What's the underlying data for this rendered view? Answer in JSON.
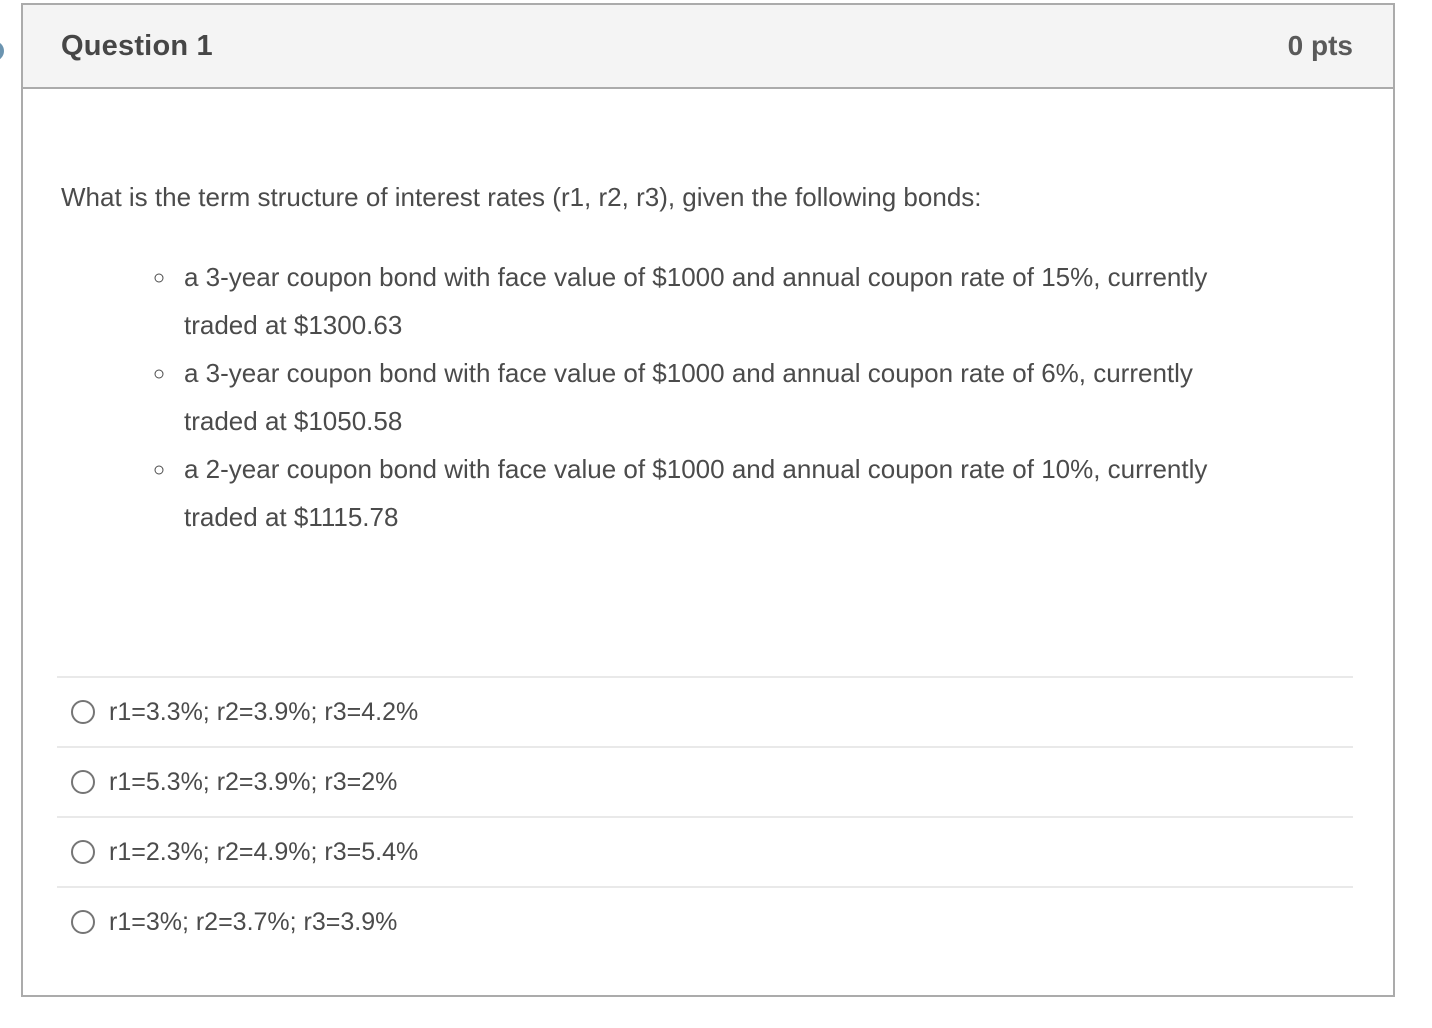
{
  "colors": {
    "header_bg": "#f4f4f4",
    "card_border": "#ababab",
    "body_text": "#4b4b4b",
    "separator": "#e9e9e9",
    "radio_border": "#757575",
    "edge_dot": "#6b94b0"
  },
  "question": {
    "title": "Question 1",
    "points": "0 pts",
    "prompt": "What is the term structure of interest rates (r1, r2, r3), given the following bonds:",
    "bonds": [
      "a 3-year coupon bond with face value of $1000 and annual coupon rate of 15%, currently traded at $1300.63",
      "a 3-year coupon bond with face value of $1000 and annual coupon rate of 6%, currently traded at $1050.58",
      "a 2-year coupon bond with face value of $1000 and annual coupon rate of 10%, currently traded at $1115.78"
    ],
    "options": [
      {
        "label": "r1=3.3%; r2=3.9%; r3=4.2%",
        "selected": false
      },
      {
        "label": "r1=5.3%; r2=3.9%; r3=2%",
        "selected": false
      },
      {
        "label": "r1=2.3%; r2=4.9%; r3=5.4%",
        "selected": false
      },
      {
        "label": "r1=3%; r2=3.7%; r3=3.9%",
        "selected": false
      }
    ]
  }
}
